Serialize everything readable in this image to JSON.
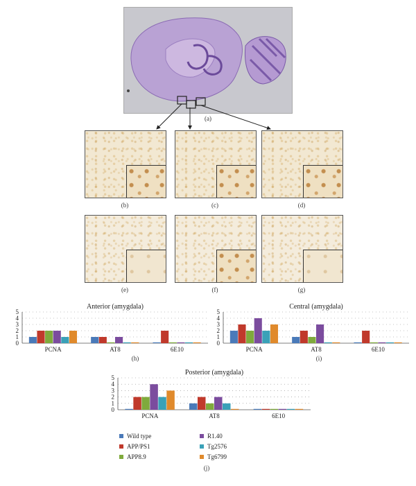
{
  "panels": {
    "a": "(a)",
    "b": "(b)",
    "c": "(c)",
    "d": "(d)",
    "e": "(e)",
    "f": "(f)",
    "g": "(g)",
    "h": "(h)",
    "i": "(i)",
    "j": "(j)"
  },
  "colors": {
    "Wild type": "#4a7ab9",
    "APP/PS1": "#c0392b",
    "APP8.9": "#7faa3c",
    "R1.40": "#7b4c9e",
    "Tg2576": "#3aa1b8",
    "Tg6799": "#e08a2c"
  },
  "legend": [
    "Wild type",
    "APP/PS1",
    "APP8.9",
    "R1.40",
    "Tg2576",
    "Tg6799"
  ],
  "chart_data": [
    {
      "type": "bar",
      "title": "Anterior (amygdala)",
      "categories": [
        "PCNA",
        "AT8",
        "6E10"
      ],
      "ylim": [
        0,
        5
      ],
      "yticks": [
        0,
        1,
        2,
        3,
        4,
        5
      ],
      "grid": true,
      "series": [
        {
          "name": "Wild type",
          "values": [
            1,
            1,
            0
          ]
        },
        {
          "name": "APP/PS1",
          "values": [
            2,
            1,
            2
          ]
        },
        {
          "name": "APP8.9",
          "values": [
            2,
            0,
            0
          ]
        },
        {
          "name": "R1.40",
          "values": [
            2,
            1,
            0
          ]
        },
        {
          "name": "Tg2576",
          "values": [
            1,
            0,
            0
          ]
        },
        {
          "name": "Tg6799",
          "values": [
            2,
            0,
            0
          ]
        }
      ]
    },
    {
      "type": "bar",
      "title": "Central (amygdala)",
      "categories": [
        "PCNA",
        "AT8",
        "6E10"
      ],
      "ylim": [
        0,
        5
      ],
      "yticks": [
        0,
        1,
        2,
        3,
        4,
        5
      ],
      "grid": true,
      "series": [
        {
          "name": "Wild type",
          "values": [
            2,
            1,
            0
          ]
        },
        {
          "name": "APP/PS1",
          "values": [
            3,
            2,
            2
          ]
        },
        {
          "name": "APP8.9",
          "values": [
            2,
            1,
            0
          ]
        },
        {
          "name": "R1.40",
          "values": [
            4,
            3,
            0
          ]
        },
        {
          "name": "Tg2576",
          "values": [
            2,
            0,
            0
          ]
        },
        {
          "name": "Tg6799",
          "values": [
            3,
            0,
            0
          ]
        }
      ]
    },
    {
      "type": "bar",
      "title": "Posterior (amygdala)",
      "categories": [
        "PCNA",
        "AT8",
        "6E10"
      ],
      "ylim": [
        0,
        5
      ],
      "yticks": [
        0,
        1,
        2,
        3,
        4,
        5
      ],
      "grid": true,
      "series": [
        {
          "name": "Wild type",
          "values": [
            0,
            1,
            0
          ]
        },
        {
          "name": "APP/PS1",
          "values": [
            2,
            2,
            0
          ]
        },
        {
          "name": "APP8.9",
          "values": [
            2,
            1,
            0
          ]
        },
        {
          "name": "R1.40",
          "values": [
            4,
            2,
            0
          ]
        },
        {
          "name": "Tg2576",
          "values": [
            2,
            1,
            0
          ]
        },
        {
          "name": "Tg6799",
          "values": [
            3,
            0,
            0
          ]
        }
      ]
    }
  ]
}
